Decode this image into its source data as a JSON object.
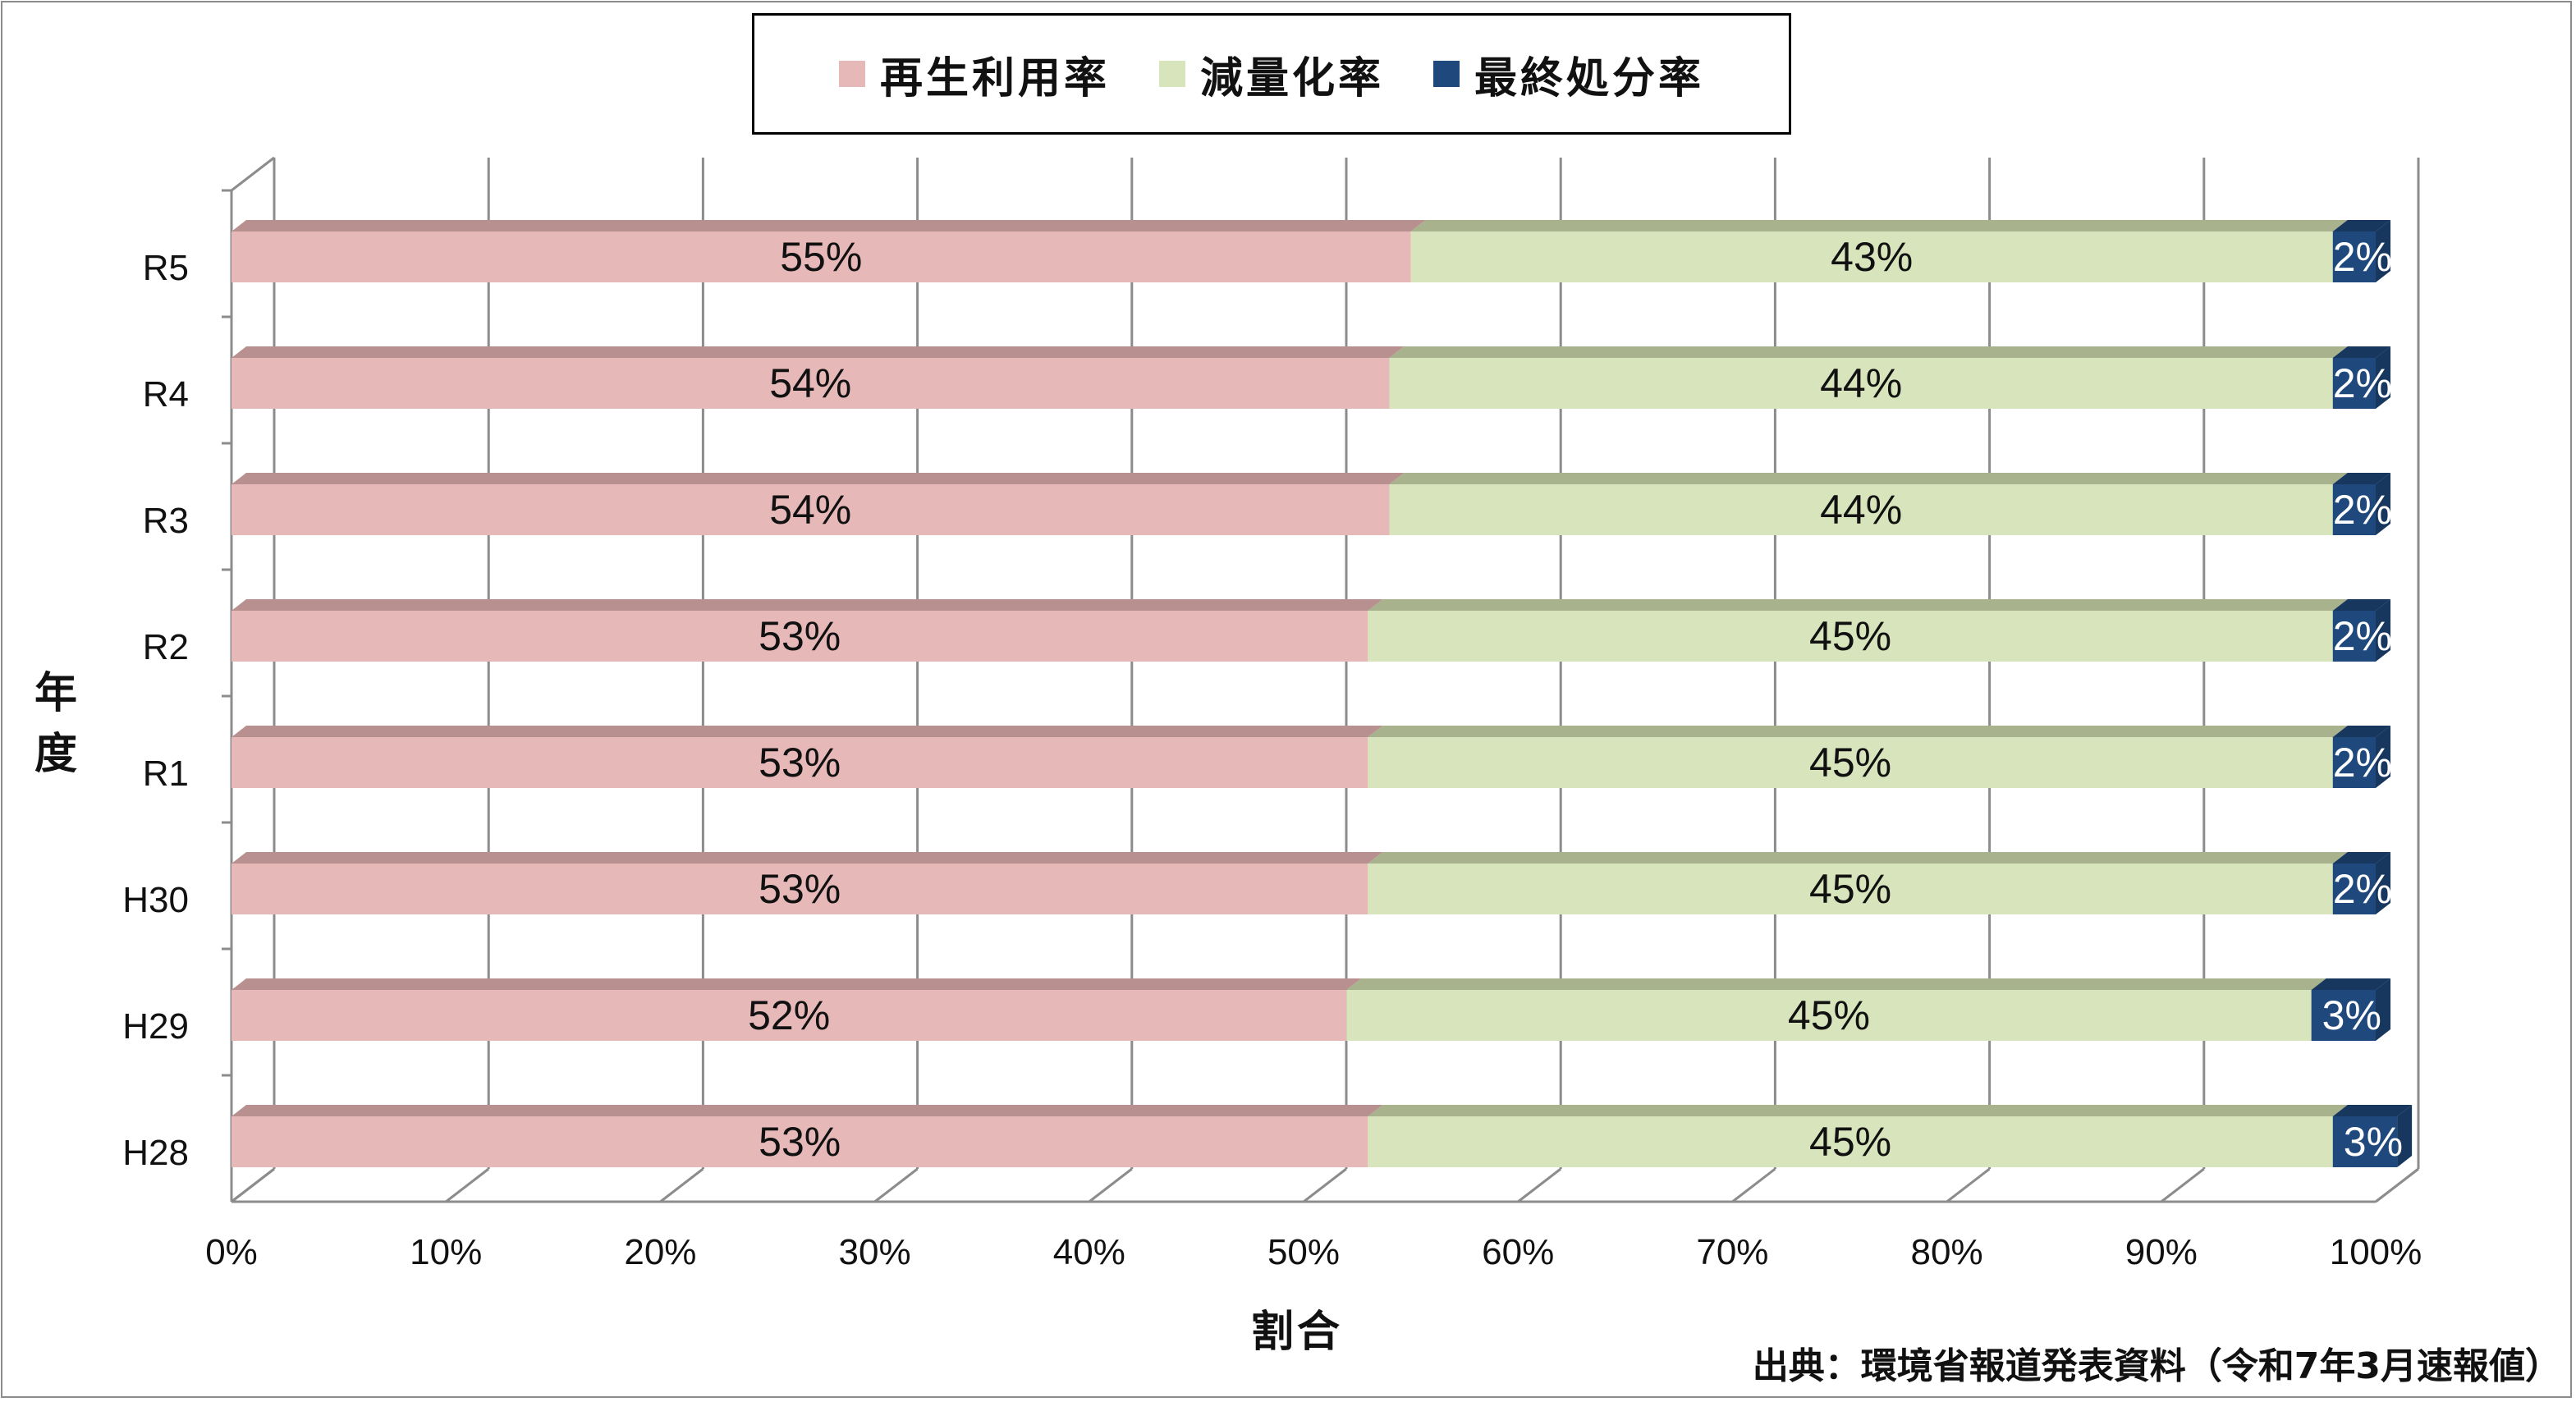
{
  "chart_data": {
    "type": "bar",
    "orientation": "horizontal",
    "stacked": true,
    "percent_stacked": true,
    "categories": [
      "R5",
      "R4",
      "R3",
      "R2",
      "R1",
      "H30",
      "H29",
      "H28"
    ],
    "series": [
      {
        "name": "再生利用率",
        "values": [
          55,
          54,
          54,
          53,
          53,
          53,
          52,
          53
        ],
        "color": "#e6b8b8",
        "top_color": "#b89090",
        "label_color": "#111111"
      },
      {
        "name": "減量化率",
        "values": [
          43,
          44,
          44,
          45,
          45,
          45,
          45,
          45
        ],
        "color": "#d8e4bc",
        "top_color": "#a8b28c",
        "label_color": "#111111"
      },
      {
        "name": "最終処分率",
        "values": [
          2,
          2,
          2,
          2,
          2,
          2,
          3,
          3
        ],
        "color": "#1f497d",
        "top_color": "#17375e",
        "label_color": "#ffffff"
      }
    ],
    "data_labels": {
      "再生利用率": [
        "55%",
        "54%",
        "54%",
        "53%",
        "53%",
        "53%",
        "52%",
        "53%"
      ],
      "減量化率": [
        "43%",
        "44%",
        "44%",
        "45%",
        "45%",
        "45%",
        "45%",
        "45%"
      ],
      "最終処分率": [
        "2%",
        "2%",
        "2%",
        "2%",
        "2%",
        "2%",
        "3%",
        "3%"
      ]
    },
    "xticks": [
      "0%",
      "10%",
      "20%",
      "30%",
      "40%",
      "50%",
      "60%",
      "70%",
      "80%",
      "90%",
      "100%"
    ],
    "xlim": [
      0,
      100
    ],
    "xlabel": "割合",
    "ylabel": "年度",
    "grid": true,
    "legend_position": "top",
    "style": "3d"
  },
  "source_note": "出典：環境省報道発表資料（令和7年3月速報値）"
}
